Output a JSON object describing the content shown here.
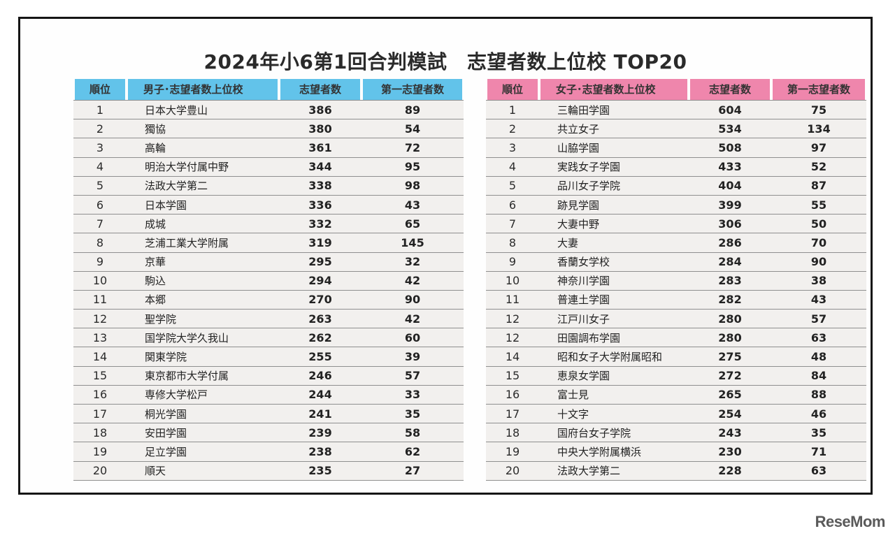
{
  "title": "2024年小6第1回合判模試　志望者数上位校 TOP20",
  "watermark": "ReseMom",
  "boys": {
    "headers": [
      "順位",
      "男子･志望者数上位校",
      "志望者数",
      "第一志望者数"
    ],
    "rows": [
      {
        "rank": "1",
        "school": "日本大学豊山",
        "applicants": "386",
        "first_choice": "89"
      },
      {
        "rank": "2",
        "school": "獨協",
        "applicants": "380",
        "first_choice": "54"
      },
      {
        "rank": "3",
        "school": "高輪",
        "applicants": "361",
        "first_choice": "72"
      },
      {
        "rank": "4",
        "school": "明治大学付属中野",
        "applicants": "344",
        "first_choice": "95"
      },
      {
        "rank": "5",
        "school": "法政大学第二",
        "applicants": "338",
        "first_choice": "98"
      },
      {
        "rank": "6",
        "school": "日本学園",
        "applicants": "336",
        "first_choice": "43"
      },
      {
        "rank": "7",
        "school": "成城",
        "applicants": "332",
        "first_choice": "65"
      },
      {
        "rank": "8",
        "school": "芝浦工業大学附属",
        "applicants": "319",
        "first_choice": "145"
      },
      {
        "rank": "9",
        "school": "京華",
        "applicants": "295",
        "first_choice": "32"
      },
      {
        "rank": "10",
        "school": "駒込",
        "applicants": "294",
        "first_choice": "42"
      },
      {
        "rank": "11",
        "school": "本郷",
        "applicants": "270",
        "first_choice": "90"
      },
      {
        "rank": "12",
        "school": "聖学院",
        "applicants": "263",
        "first_choice": "42"
      },
      {
        "rank": "13",
        "school": "国学院大学久我山",
        "applicants": "262",
        "first_choice": "60"
      },
      {
        "rank": "14",
        "school": "関東学院",
        "applicants": "255",
        "first_choice": "39"
      },
      {
        "rank": "15",
        "school": "東京都市大学付属",
        "applicants": "246",
        "first_choice": "57"
      },
      {
        "rank": "16",
        "school": "専修大学松戸",
        "applicants": "244",
        "first_choice": "33"
      },
      {
        "rank": "17",
        "school": "桐光学園",
        "applicants": "241",
        "first_choice": "35"
      },
      {
        "rank": "18",
        "school": "安田学園",
        "applicants": "239",
        "first_choice": "58"
      },
      {
        "rank": "19",
        "school": "足立学園",
        "applicants": "238",
        "first_choice": "62"
      },
      {
        "rank": "20",
        "school": "順天",
        "applicants": "235",
        "first_choice": "27"
      }
    ]
  },
  "girls": {
    "headers": [
      "順位",
      "女子･志望者数上位校",
      "志望者数",
      "第一志望者数"
    ],
    "rows": [
      {
        "rank": "1",
        "school": "三輪田学園",
        "applicants": "604",
        "first_choice": "75"
      },
      {
        "rank": "2",
        "school": "共立女子",
        "applicants": "534",
        "first_choice": "134"
      },
      {
        "rank": "3",
        "school": "山脇学園",
        "applicants": "508",
        "first_choice": "97"
      },
      {
        "rank": "4",
        "school": "実践女子学園",
        "applicants": "433",
        "first_choice": "52"
      },
      {
        "rank": "5",
        "school": "品川女子学院",
        "applicants": "404",
        "first_choice": "87"
      },
      {
        "rank": "6",
        "school": "跡見学園",
        "applicants": "399",
        "first_choice": "55"
      },
      {
        "rank": "7",
        "school": "大妻中野",
        "applicants": "306",
        "first_choice": "50"
      },
      {
        "rank": "8",
        "school": "大妻",
        "applicants": "286",
        "first_choice": "70"
      },
      {
        "rank": "9",
        "school": "香蘭女学校",
        "applicants": "284",
        "first_choice": "90"
      },
      {
        "rank": "10",
        "school": "神奈川学園",
        "applicants": "283",
        "first_choice": "38"
      },
      {
        "rank": "11",
        "school": "普連土学園",
        "applicants": "282",
        "first_choice": "43"
      },
      {
        "rank": "12",
        "school": "江戸川女子",
        "applicants": "280",
        "first_choice": "57"
      },
      {
        "rank": "12",
        "school": "田園調布学園",
        "applicants": "280",
        "first_choice": "63"
      },
      {
        "rank": "14",
        "school": "昭和女子大学附属昭和",
        "applicants": "275",
        "first_choice": "48"
      },
      {
        "rank": "15",
        "school": "恵泉女学園",
        "applicants": "272",
        "first_choice": "84"
      },
      {
        "rank": "16",
        "school": "富士見",
        "applicants": "265",
        "first_choice": "88"
      },
      {
        "rank": "17",
        "school": "十文字",
        "applicants": "254",
        "first_choice": "46"
      },
      {
        "rank": "18",
        "school": "国府台女子学院",
        "applicants": "243",
        "first_choice": "35"
      },
      {
        "rank": "19",
        "school": "中央大学附属横浜",
        "applicants": "230",
        "first_choice": "71"
      },
      {
        "rank": "20",
        "school": "法政大学第二",
        "applicants": "228",
        "first_choice": "63"
      }
    ]
  }
}
